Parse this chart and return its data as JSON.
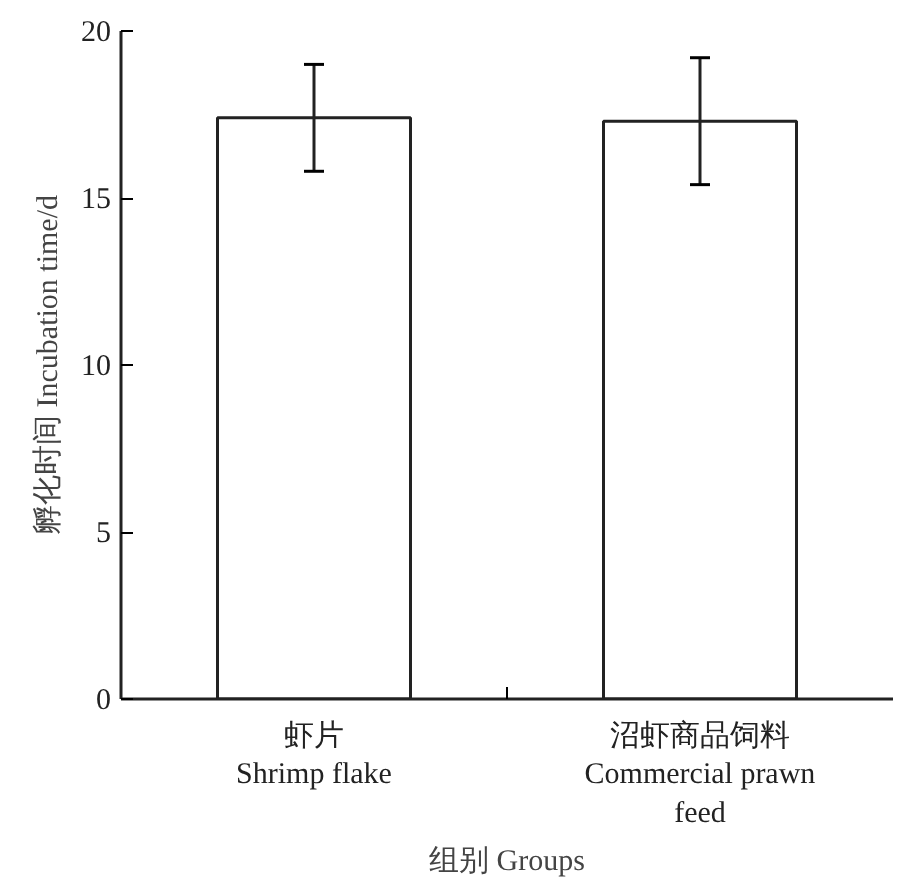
{
  "chart_data": {
    "type": "bar",
    "categories": [
      "虾片\nShrimp flake",
      "沼虾商品饲料\nCommercial prawn\nfeed"
    ],
    "values": [
      17.4,
      17.3
    ],
    "errors": [
      [
        15.8,
        19.0
      ],
      [
        15.4,
        19.2
      ]
    ],
    "color": "#ffffff",
    "xlabel": "组别 Groups",
    "ylabel": "孵化时间 Incubation time/d",
    "ylim": [
      0,
      20
    ],
    "yticks": [
      0,
      5,
      10,
      15,
      20
    ],
    "grid": false
  }
}
